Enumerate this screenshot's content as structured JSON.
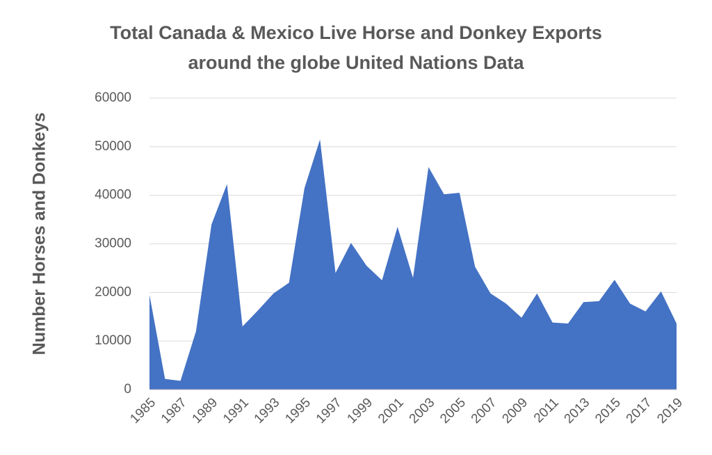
{
  "chart_data": {
    "type": "area",
    "title_lines": [
      "Total Canada & Mexico Live Horse and Donkey Exports",
      "around the globe United Nations Data"
    ],
    "xlabel": "",
    "ylabel": "Number Horses and Donkeys",
    "ylim": [
      0,
      60000
    ],
    "yticks": [
      "0",
      "10000",
      "20000",
      "30000",
      "40000",
      "50000",
      "60000"
    ],
    "xtick_labels": [
      "1985",
      "1987",
      "1989",
      "1991",
      "1993",
      "1995",
      "1997",
      "1999",
      "2001",
      "2003",
      "2005",
      "2007",
      "2009",
      "2011",
      "2013",
      "2015",
      "2017",
      "2019"
    ],
    "grid": true,
    "legend": "none",
    "color": "#4472C4",
    "series": [
      {
        "x": [
          1985,
          1986,
          1987,
          1988,
          1989,
          1990,
          1991,
          1992,
          1993,
          1994,
          1995,
          1996,
          1997,
          1998,
          1999,
          2000,
          2001,
          2002,
          2003,
          2004,
          2005,
          2006,
          2007,
          2008,
          2009,
          2010,
          2011,
          2012,
          2013,
          2014,
          2015,
          2016,
          2017,
          2018,
          2019
        ],
        "values": [
          19500,
          2200,
          1800,
          12000,
          34000,
          42300,
          13000,
          16300,
          19800,
          22000,
          41500,
          51500,
          24000,
          30200,
          25500,
          22500,
          33500,
          23000,
          45800,
          40200,
          40500,
          25300,
          19800,
          17700,
          14800,
          19800,
          13800,
          13600,
          18000,
          18200,
          22600,
          17700,
          16100,
          20200,
          13600
        ]
      }
    ]
  }
}
